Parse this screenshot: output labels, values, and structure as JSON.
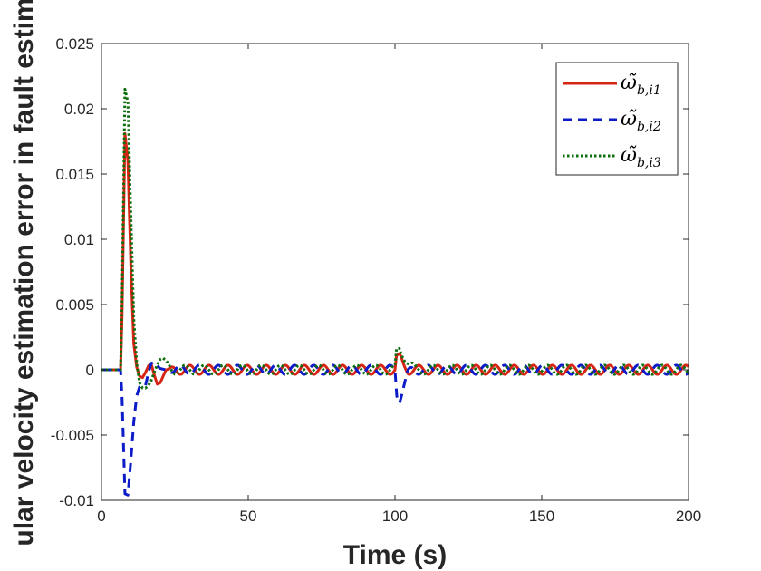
{
  "chart_data": {
    "type": "line",
    "title": "",
    "xlabel": "Time (s)",
    "ylabel": "ular velocity estimation error in fault estim",
    "xlim": [
      0,
      200
    ],
    "ylim": [
      -0.01,
      0.025
    ],
    "xticks": [
      0,
      50,
      100,
      150,
      200
    ],
    "xtick_labels": [
      "0",
      "50",
      "100",
      "150",
      "200"
    ],
    "yticks": [
      -0.01,
      -0.005,
      0,
      0.005,
      0.01,
      0.015,
      0.02,
      0.025
    ],
    "ytick_labels": [
      "-0.01",
      "-0.005",
      "0",
      "0.005",
      "0.01",
      "0.015",
      "0.02",
      "0.025"
    ],
    "grid": false,
    "legend_position": "top-right",
    "oscillation": {
      "start": 22,
      "period": 6.5,
      "amplitude": 0.00035
    },
    "series": [
      {
        "name": "ω̃",
        "subscript": "b,i1",
        "color": "#d62415",
        "dash": "solid",
        "phase": 0,
        "points": [
          [
            0,
            0
          ],
          [
            6.5,
            0
          ],
          [
            7,
            0.004
          ],
          [
            8,
            0.0181
          ],
          [
            9,
            0.016
          ],
          [
            10,
            0.008
          ],
          [
            11,
            0.002
          ],
          [
            12,
            0.0002
          ],
          [
            13,
            -0.0005
          ],
          [
            14,
            -0.0006
          ],
          [
            15,
            -0.0002
          ],
          [
            16,
            0.0003
          ],
          [
            17,
            0.0004
          ],
          [
            18,
            -0.0004
          ],
          [
            19,
            -0.0011
          ],
          [
            20,
            -0.001
          ],
          [
            21,
            -0.0005
          ],
          [
            22,
            0
          ],
          [
            100,
            0
          ],
          [
            100.5,
            0.0009
          ],
          [
            101.5,
            0.0009
          ],
          [
            103,
            0.0003
          ],
          [
            104.5,
            0
          ],
          [
            200,
            0
          ]
        ]
      },
      {
        "name": "ω̃",
        "subscript": "b,i2",
        "color": "#0d1cc8",
        "dash": "10,7",
        "phase": 3.2,
        "points": [
          [
            0,
            0
          ],
          [
            6.5,
            0
          ],
          [
            7,
            -0.002
          ],
          [
            8,
            -0.0095
          ],
          [
            9,
            -0.0096
          ],
          [
            10,
            -0.007
          ],
          [
            11,
            -0.004
          ],
          [
            12,
            -0.002
          ],
          [
            13,
            -0.0013
          ],
          [
            14,
            -0.0012
          ],
          [
            15,
            -0.0012
          ],
          [
            16,
            -0.0002
          ],
          [
            17,
            0.0005
          ],
          [
            18,
            0.0006
          ],
          [
            19,
            0.0003
          ],
          [
            20,
            0.0001
          ],
          [
            22,
            0
          ],
          [
            100,
            0
          ],
          [
            100.6,
            -0.0018
          ],
          [
            101.5,
            -0.0022
          ],
          [
            103,
            -0.0012
          ],
          [
            104.5,
            -0.0003
          ],
          [
            106,
            0
          ],
          [
            200,
            0
          ]
        ]
      },
      {
        "name": "ω̃",
        "subscript": "b,i3",
        "color": "#0d6e0d",
        "dash": "2.5,2.5",
        "phase": 1.6,
        "points": [
          [
            0,
            0
          ],
          [
            6.5,
            0
          ],
          [
            7,
            0.005
          ],
          [
            8,
            0.0215
          ],
          [
            9,
            0.0205
          ],
          [
            10,
            0.012
          ],
          [
            11,
            0.004
          ],
          [
            12,
            0.0005
          ],
          [
            13,
            -0.001
          ],
          [
            14,
            -0.0014
          ],
          [
            15,
            -0.0014
          ],
          [
            16,
            -0.0012
          ],
          [
            17,
            -0.0008
          ],
          [
            18,
            -0.0002
          ],
          [
            19,
            0.0004
          ],
          [
            20,
            0.0008
          ],
          [
            21,
            0.0009
          ],
          [
            22,
            0.0007
          ],
          [
            23,
            0.0003
          ],
          [
            24,
            0
          ],
          [
            100,
            0
          ],
          [
            100.5,
            0.0013
          ],
          [
            101.5,
            0.0016
          ],
          [
            103,
            0.0011
          ],
          [
            105,
            0.0004
          ],
          [
            107,
            0
          ],
          [
            200,
            0
          ]
        ]
      }
    ]
  }
}
